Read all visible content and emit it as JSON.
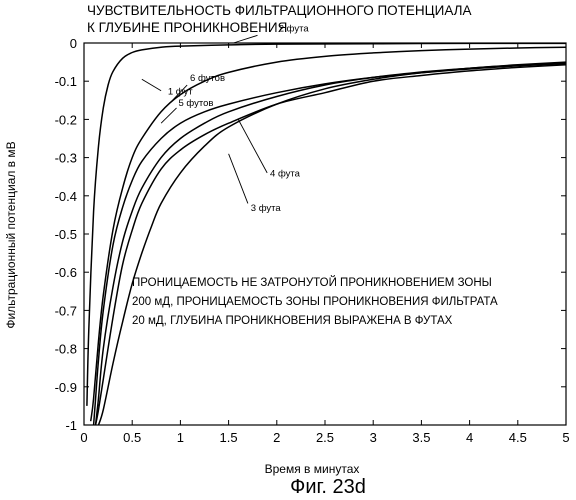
{
  "chart_data": {
    "type": "line",
    "title": [
      "ЧУВСТВИТЕЛЬНОСТЬ ФИЛЬТРАЦИОННОГО ПОТЕНЦИАЛА",
      "К ГЛУБИНЕ  ПРОНИКНОВЕНИЯ"
    ],
    "xlabel": "Время в минутах",
    "ylabel": "Фильтрационный потенциал в мВ",
    "xlim": [
      0,
      5
    ],
    "ylim": [
      -1,
      0
    ],
    "x_ticks": [
      "0",
      "0.5",
      "1",
      "1.5",
      "2",
      "2.5",
      "3",
      "3.5",
      "4",
      "4.5",
      "5"
    ],
    "y_ticks": [
      "0",
      "-0.1",
      "-0.2",
      "-0.3",
      "-0.4",
      "-0.5",
      "-0.6",
      "-0.7",
      "-0.8",
      "-0.9",
      "-1"
    ],
    "grid": false,
    "annotation": [
      "ПРОНИЦАЕМОСТЬ НЕ ЗАТРОНУТОЙ ПРОНИКНОВЕНИЕМ ЗОНЫ",
      "200 мД, ПРОНИЦАЕМОСТЬ ЗОНЫ ПРОНИКНОВЕНИЯ ФИЛЬТРАТА",
      "20 мД, ГЛУБИНА ПРОНИКНОВЕНИЯ ВЫРАЖЕНА В ФУТАХ"
    ],
    "figure_caption": "Фиг. 23d",
    "series": [
      {
        "name": "1 фут",
        "x": [
          0.03,
          0.05,
          0.1,
          0.15,
          0.2,
          0.25,
          0.3,
          0.4,
          0.5,
          0.6,
          0.8,
          1.0,
          1.5,
          2.0,
          3.0,
          4.0,
          5.0
        ],
        "y": [
          -0.95,
          -0.75,
          -0.44,
          -0.27,
          -0.17,
          -0.11,
          -0.075,
          -0.04,
          -0.025,
          -0.018,
          -0.011,
          -0.008,
          -0.005,
          -0.003,
          -0.002,
          -0.001,
          -0.001
        ]
      },
      {
        "name": "2 фута",
        "x": [
          0.07,
          0.1,
          0.15,
          0.2,
          0.3,
          0.4,
          0.5,
          0.6,
          0.8,
          1.0,
          1.25,
          1.5,
          2.0,
          2.5,
          3.0,
          3.5,
          4.0,
          4.5,
          5.0
        ],
        "y": [
          -0.99,
          -0.93,
          -0.78,
          -0.66,
          -0.49,
          -0.38,
          -0.3,
          -0.25,
          -0.18,
          -0.135,
          -0.1,
          -0.077,
          -0.05,
          -0.035,
          -0.026,
          -0.02,
          -0.016,
          -0.013,
          -0.011
        ]
      },
      {
        "name": "3 фута",
        "x": [
          0.15,
          0.2,
          0.3,
          0.4,
          0.5,
          0.6,
          0.7,
          0.8,
          1.0,
          1.25,
          1.5,
          2.0,
          2.5,
          3.0,
          3.5,
          4.0,
          4.5,
          5.0
        ],
        "y": [
          -1.0,
          -0.96,
          -0.84,
          -0.73,
          -0.63,
          -0.55,
          -0.48,
          -0.42,
          -0.34,
          -0.27,
          -0.22,
          -0.16,
          -0.12,
          -0.095,
          -0.078,
          -0.066,
          -0.057,
          -0.05
        ]
      },
      {
        "name": "4 фута",
        "x": [
          0.12,
          0.15,
          0.2,
          0.3,
          0.4,
          0.5,
          0.6,
          0.8,
          1.0,
          1.25,
          1.5,
          2.0,
          2.5,
          3.0,
          3.5,
          4.0,
          4.5,
          5.0
        ],
        "y": [
          -1.0,
          -0.96,
          -0.88,
          -0.72,
          -0.58,
          -0.49,
          -0.42,
          -0.33,
          -0.28,
          -0.24,
          -0.21,
          -0.16,
          -0.13,
          -0.1,
          -0.085,
          -0.073,
          -0.064,
          -0.057
        ]
      },
      {
        "name": "5 футов",
        "x": [
          0.12,
          0.15,
          0.2,
          0.3,
          0.4,
          0.5,
          0.6,
          0.8,
          1.0,
          1.25,
          1.5,
          2.0,
          2.5,
          3.0,
          3.5,
          4.0,
          4.5,
          5.0
        ],
        "y": [
          -1.0,
          -0.93,
          -0.8,
          -0.64,
          -0.52,
          -0.44,
          -0.38,
          -0.3,
          -0.25,
          -0.21,
          -0.18,
          -0.14,
          -0.11,
          -0.09,
          -0.076,
          -0.066,
          -0.058,
          -0.052
        ]
      },
      {
        "name": "6 футов",
        "x": [
          0.1,
          0.12,
          0.15,
          0.2,
          0.3,
          0.4,
          0.5,
          0.6,
          0.8,
          1.0,
          1.25,
          1.5,
          2.0,
          2.5,
          3.0,
          3.5,
          4.0,
          4.5,
          5.0
        ],
        "y": [
          -1.0,
          -0.93,
          -0.83,
          -0.7,
          -0.53,
          -0.43,
          -0.36,
          -0.31,
          -0.25,
          -0.21,
          -0.18,
          -0.16,
          -0.13,
          -0.107,
          -0.09,
          -0.078,
          -0.068,
          -0.06,
          -0.054
        ]
      }
    ],
    "labels": [
      {
        "text": "1 фут",
        "x": 0.87,
        "y": -0.135,
        "lx1": 0.6,
        "ly1": -0.095,
        "lx2": 0.8,
        "ly2": -0.125
      },
      {
        "text": "2 фута",
        "x": 2.02,
        "y": 0.03,
        "lx1": 1.8,
        "ly1": 0.02,
        "lx2": 1.55,
        "ly2": 0.0
      },
      {
        "text": "6 футов",
        "x": 1.1,
        "y": -0.1,
        "lx1": 1.07,
        "ly1": -0.11,
        "lx2": 0.88,
        "ly2": -0.16
      },
      {
        "text": "5 футов",
        "x": 0.98,
        "y": -0.165,
        "lx1": 0.96,
        "ly1": -0.17,
        "lx2": 0.8,
        "ly2": -0.21
      },
      {
        "text": "4 фута",
        "x": 1.93,
        "y": -0.35,
        "lx1": 1.9,
        "ly1": -0.34,
        "lx2": 1.6,
        "ly2": -0.2
      },
      {
        "text": "3 фута",
        "x": 1.73,
        "y": -0.44,
        "lx1": 1.7,
        "ly1": -0.42,
        "lx2": 1.5,
        "ly2": -0.29
      }
    ]
  }
}
